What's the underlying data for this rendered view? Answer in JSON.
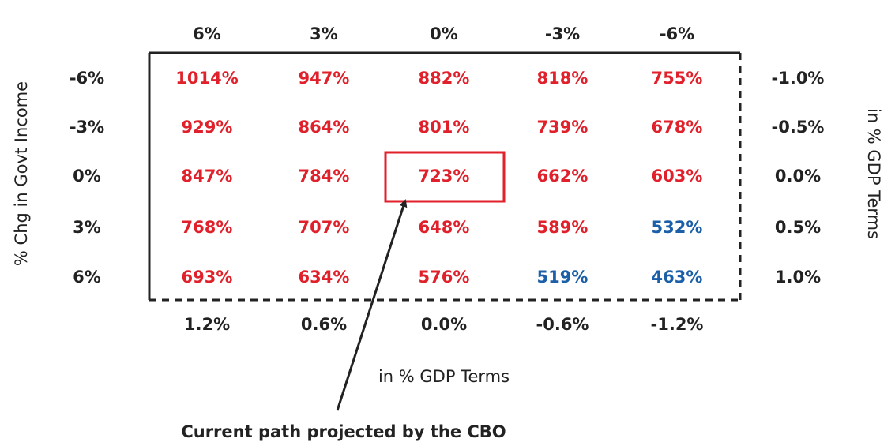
{
  "chart_data": {
    "type": "table",
    "top_labels": [
      "6%",
      "3%",
      "0%",
      "-3%",
      "-6%"
    ],
    "bottom_labels": [
      "1.2%",
      "0.6%",
      "0.0%",
      "-0.6%",
      "-1.2%"
    ],
    "left_labels": [
      "-6%",
      "-3%",
      "0%",
      "3%",
      "6%"
    ],
    "right_labels": [
      "-1.0%",
      "-0.5%",
      "0.0%",
      "0.5%",
      "1.0%"
    ],
    "left_axis_title": "% Chg in Govt Income",
    "right_axis_title": "in % GDP Terms",
    "bottom_axis_title": "in % GDP Terms",
    "annotation": "Current path projected by the CBO",
    "highlighted_cell": {
      "row": 2,
      "col": 2
    },
    "colors": {
      "red": "#e0202a",
      "blue": "#1a5fa8",
      "text": "#222222",
      "border": "#222222"
    },
    "cells": [
      [
        {
          "v": "1014%",
          "c": "red"
        },
        {
          "v": "947%",
          "c": "red"
        },
        {
          "v": "882%",
          "c": "red"
        },
        {
          "v": "818%",
          "c": "red"
        },
        {
          "v": "755%",
          "c": "red"
        }
      ],
      [
        {
          "v": "929%",
          "c": "red"
        },
        {
          "v": "864%",
          "c": "red"
        },
        {
          "v": "801%",
          "c": "red"
        },
        {
          "v": "739%",
          "c": "red"
        },
        {
          "v": "678%",
          "c": "red"
        }
      ],
      [
        {
          "v": "847%",
          "c": "red"
        },
        {
          "v": "784%",
          "c": "red"
        },
        {
          "v": "723%",
          "c": "red"
        },
        {
          "v": "662%",
          "c": "red"
        },
        {
          "v": "603%",
          "c": "red"
        }
      ],
      [
        {
          "v": "768%",
          "c": "red"
        },
        {
          "v": "707%",
          "c": "red"
        },
        {
          "v": "648%",
          "c": "red"
        },
        {
          "v": "589%",
          "c": "red"
        },
        {
          "v": "532%",
          "c": "blue"
        }
      ],
      [
        {
          "v": "693%",
          "c": "red"
        },
        {
          "v": "634%",
          "c": "red"
        },
        {
          "v": "576%",
          "c": "red"
        },
        {
          "v": "519%",
          "c": "blue"
        },
        {
          "v": "463%",
          "c": "blue"
        }
      ]
    ]
  }
}
